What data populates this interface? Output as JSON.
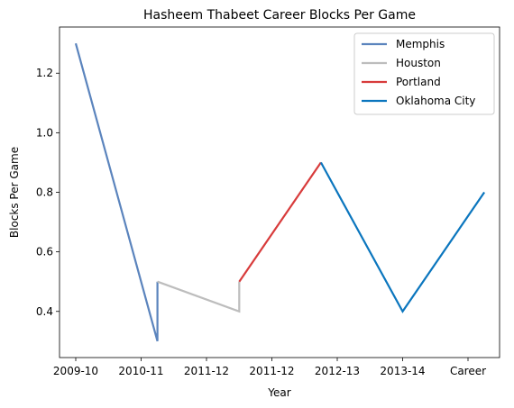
{
  "chart_data": {
    "type": "line",
    "title": "Hasheem Thabeet Career Blocks Per Game",
    "xlabel": "Year",
    "ylabel": "Blocks Per Game",
    "x_tick_labels": [
      "2009-10",
      "2010-11",
      "2011-12",
      "2011-12",
      "2012-13",
      "2013-14",
      "Career"
    ],
    "y_ticks": [
      0.4,
      0.6,
      0.8,
      1.0,
      1.2
    ],
    "ylim": [
      0.245,
      1.355
    ],
    "grid": false,
    "legend_position": "top-right",
    "series": [
      {
        "name": "Memphis",
        "color": "#5b84bd",
        "points": [
          [
            0,
            1.3
          ],
          [
            1.25,
            0.3
          ],
          [
            1.25,
            0.5
          ]
        ]
      },
      {
        "name": "Houston",
        "color": "#bdbdbd",
        "points": [
          [
            1.25,
            0.5
          ],
          [
            2.5,
            0.4
          ],
          [
            2.5,
            0.5
          ]
        ]
      },
      {
        "name": "Portland",
        "color": "#d83b3b",
        "points": [
          [
            2.5,
            0.5
          ],
          [
            3.75,
            0.9
          ]
        ]
      },
      {
        "name": "Oklahoma City",
        "color": "#0b76be",
        "points": [
          [
            3.75,
            0.9
          ],
          [
            5.0,
            0.4
          ],
          [
            6.25,
            0.8
          ]
        ]
      }
    ]
  }
}
